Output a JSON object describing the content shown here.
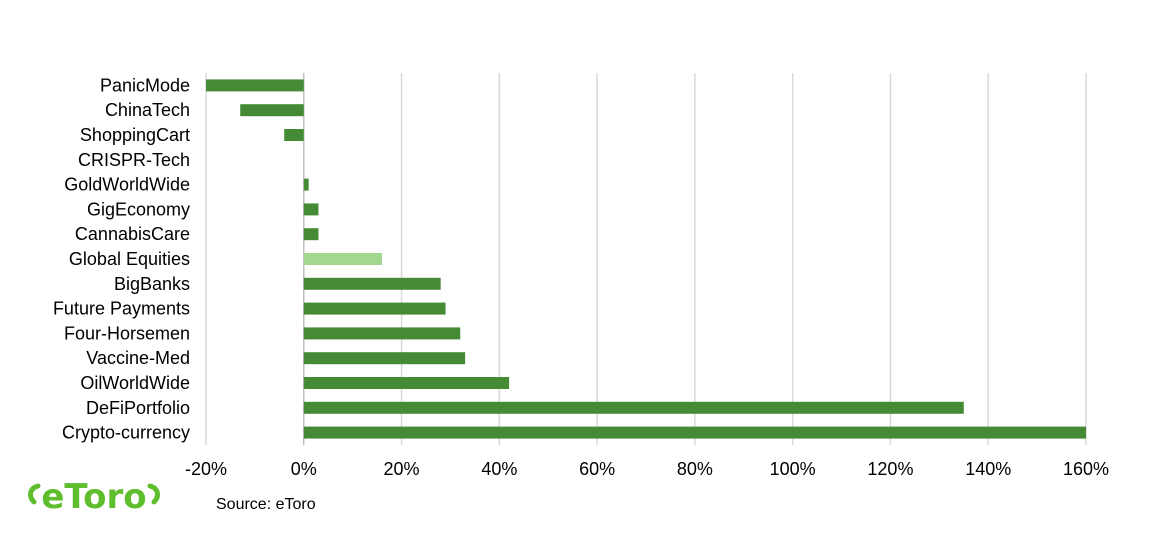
{
  "chart_data": {
    "type": "bar",
    "orientation": "horizontal",
    "categories": [
      "PanicMode",
      "ChinaTech",
      "ShoppingCart",
      "CRISPR-Tech",
      "GoldWorldWide",
      "GigEconomy",
      "CannabisCare",
      "Global Equities",
      "BigBanks",
      "Future Payments",
      "Four-Horsemen",
      "Vaccine-Med",
      "OilWorldWide",
      "DeFiPortfolio",
      "Crypto-currency"
    ],
    "values": [
      -20,
      -13,
      -4,
      0,
      1,
      3,
      3,
      16,
      28,
      29,
      32,
      33,
      42,
      135,
      160
    ],
    "highlight_category": "Global Equities",
    "xlim": [
      -20,
      160
    ],
    "xticks": [
      -20,
      0,
      20,
      40,
      60,
      80,
      100,
      120,
      140,
      160
    ],
    "xtick_labels": [
      "-20%",
      "0%",
      "20%",
      "40%",
      "60%",
      "80%",
      "100%",
      "120%",
      "140%",
      "160%"
    ],
    "grid": "vertical",
    "colors": {
      "bar": "#458b36",
      "highlight": "#a3d78f"
    }
  },
  "source_text": "Source:  eToro",
  "logo_text": "eToro",
  "logo_color": "#5fbe2e"
}
